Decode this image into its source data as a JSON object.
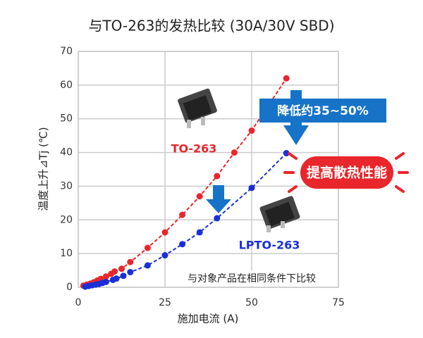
{
  "chart_data": {
    "type": "line",
    "title": "与TO-263的发热比较 (30A/30V SBD)",
    "x_label": "施加电流 (A)",
    "y_label": "温度上升⊿Tj (℃)",
    "xlim": [
      0,
      75
    ],
    "xticks": [
      0,
      25,
      50,
      75
    ],
    "ylim": [
      0,
      70
    ],
    "yticks": [
      0,
      10,
      20,
      30,
      40,
      50,
      60,
      70
    ],
    "grid": true,
    "series": [
      {
        "name": "TO-263",
        "color": "#e8262b",
        "x": [
          1.5,
          2.5,
          3.5,
          4.5,
          5.5,
          6.5,
          8,
          9.5,
          10.5,
          12.5,
          15,
          20,
          25,
          30,
          35,
          40,
          45,
          50,
          60
        ],
        "values": [
          0.5,
          0.8,
          1.1,
          1.5,
          2,
          2.5,
          3.2,
          4,
          4.7,
          5.5,
          7.5,
          11.7,
          16.3,
          21.5,
          27,
          33,
          40,
          46.5,
          62
        ]
      },
      {
        "name": "LPTO-263",
        "color": "#1a2fd6",
        "x": [
          2,
          3,
          4,
          5,
          6,
          7,
          8,
          10,
          11,
          13,
          15,
          20,
          25,
          30,
          35,
          40,
          50,
          60
        ],
        "values": [
          0.2,
          0.4,
          0.6,
          0.8,
          1,
          1.3,
          1.6,
          2.2,
          2.6,
          3.4,
          4.5,
          6.5,
          9.5,
          12.8,
          16.3,
          20.5,
          29.5,
          39.8
        ]
      }
    ],
    "annotations": {
      "reduction": "降低约35~50%",
      "improve": "提高散热性能",
      "note": "与对象产品在相同条件下比较"
    }
  }
}
